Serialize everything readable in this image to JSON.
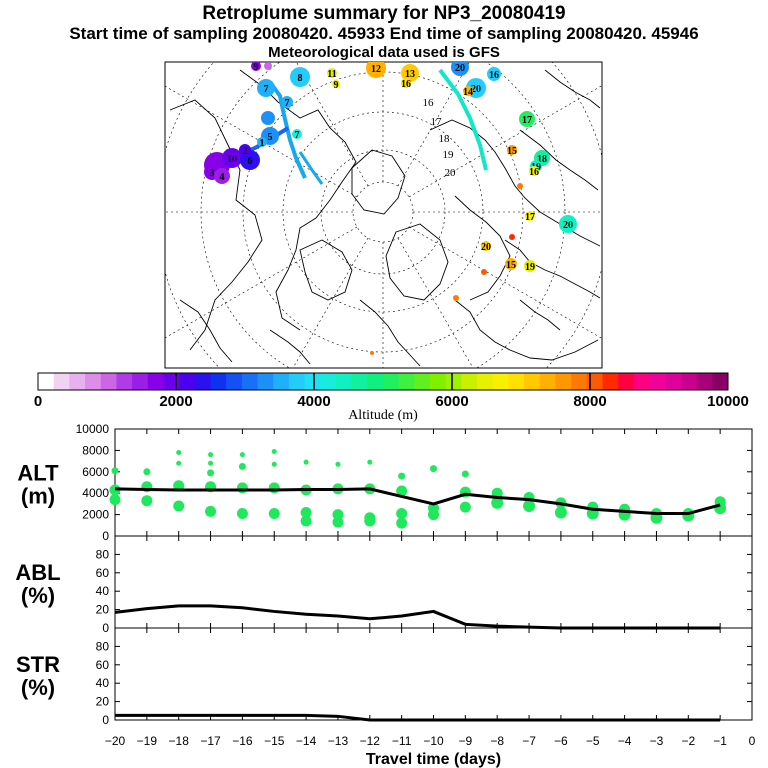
{
  "header": {
    "title": "Retroplume summary for NP3_20080419",
    "sampling_line": "Start time of sampling 20080420. 45933     End time of sampling 20080420. 45946",
    "met_line": "Meteorological data used is GFS"
  },
  "colorbar": {
    "ticks": [
      "0",
      "2000",
      "4000",
      "6000",
      "8000",
      "10000"
    ],
    "label": "Altitude (m)",
    "colors": [
      "#ffffff",
      "#f2d2f2",
      "#e8b0ee",
      "#dc8ee8",
      "#cc66e6",
      "#b03ce6",
      "#9a1ee6",
      "#8800e8",
      "#6a00ea",
      "#4c00ee",
      "#2c10f0",
      "#1030f2",
      "#1450f4",
      "#1870f6",
      "#1c90f8",
      "#20b0fa",
      "#24ccfc",
      "#20e0f4",
      "#18ecdc",
      "#10f0c0",
      "#10f0a0",
      "#10f080",
      "#20f060",
      "#40f040",
      "#60f020",
      "#80f000",
      "#a0f000",
      "#c8f000",
      "#e6f000",
      "#f8f000",
      "#ffe000",
      "#ffc800",
      "#ffb000",
      "#ff9800",
      "#ff7a00",
      "#ff5a00",
      "#ff2a00",
      "#ff0040",
      "#ff0080",
      "#f2009a",
      "#e0009a",
      "#c8008c",
      "#a8007a",
      "#880066"
    ]
  },
  "map": {
    "labels": [
      "12",
      "13",
      "15",
      "16",
      "17",
      "18",
      "19",
      "20",
      "14",
      "11",
      "8",
      "7",
      "6",
      "5",
      "4",
      "3",
      "2",
      "1",
      "9",
      "10"
    ],
    "track_labels": [
      "16",
      "17",
      "18",
      "19",
      "20"
    ]
  },
  "chart_data": [
    {
      "type": "scatter",
      "panel": "ALT",
      "ylabel": "ALT (m)",
      "ylim": [
        0,
        10000
      ],
      "yticks": [
        "0",
        "2000",
        "4000",
        "6000",
        "8000",
        "10000"
      ],
      "x": [
        -20,
        -19,
        -18,
        -17,
        -16,
        -15,
        -14,
        -13,
        -12,
        -11,
        -10,
        -9,
        -8,
        -7,
        -6,
        -5,
        -4,
        -3,
        -2,
        -1
      ],
      "mean_line": [
        4400,
        4350,
        4300,
        4300,
        4300,
        4300,
        4350,
        4350,
        4400,
        3700,
        3000,
        3900,
        3600,
        3400,
        3000,
        2500,
        2300,
        2100,
        2100,
        2900
      ],
      "clusters": [
        {
          "x": -20,
          "y": [
            6100,
            4300,
            3400
          ]
        },
        {
          "x": -19,
          "y": [
            6000,
            4600,
            3300
          ]
        },
        {
          "x": -18,
          "y": [
            7800,
            6800,
            4700,
            2800
          ]
        },
        {
          "x": -17,
          "y": [
            7600,
            6800,
            5900,
            4600,
            2300
          ]
        },
        {
          "x": -16,
          "y": [
            7600,
            6500,
            4500,
            2100
          ]
        },
        {
          "x": -15,
          "y": [
            7900,
            6700,
            4500,
            2100
          ]
        },
        {
          "x": -14,
          "y": [
            6900,
            4300,
            2200,
            1400
          ]
        },
        {
          "x": -13,
          "y": [
            6700,
            4400,
            2000,
            1300
          ]
        },
        {
          "x": -12,
          "y": [
            6900,
            4400,
            1700,
            1400
          ]
        },
        {
          "x": -11,
          "y": [
            5600,
            4200,
            2100,
            1200
          ]
        },
        {
          "x": -10,
          "y": [
            6300,
            2600,
            2000
          ]
        },
        {
          "x": -9,
          "y": [
            5800,
            4100,
            2700
          ]
        },
        {
          "x": -8,
          "y": [
            4000,
            3100
          ]
        },
        {
          "x": -7,
          "y": [
            3600,
            2800
          ]
        },
        {
          "x": -6,
          "y": [
            3100,
            2200
          ]
        },
        {
          "x": -5,
          "y": [
            2700,
            2100
          ]
        },
        {
          "x": -4,
          "y": [
            2500,
            2000
          ]
        },
        {
          "x": -3,
          "y": [
            2100,
            1700
          ]
        },
        {
          "x": -2,
          "y": [
            2100,
            1900
          ]
        },
        {
          "x": -1,
          "y": [
            3200,
            2600
          ]
        }
      ]
    },
    {
      "type": "line",
      "panel": "ABL",
      "ylabel": "ABL (%)",
      "ylim": [
        0,
        100
      ],
      "yticks": [
        "0",
        "20",
        "40",
        "60",
        "80"
      ],
      "x": [
        -20,
        -19,
        -18,
        -17,
        -16,
        -15,
        -14,
        -13,
        -12,
        -11,
        -10,
        -9,
        -8,
        -7,
        -6,
        -5,
        -4,
        -3,
        -2,
        -1
      ],
      "values": [
        17,
        21,
        24,
        24,
        22,
        18,
        15,
        13,
        10,
        13,
        18,
        4,
        2,
        1,
        0,
        0,
        0,
        0,
        0,
        0
      ]
    },
    {
      "type": "line",
      "panel": "STR",
      "ylabel": "STR (%)",
      "ylim": [
        0,
        100
      ],
      "yticks": [
        "0",
        "20",
        "40",
        "60",
        "80"
      ],
      "x": [
        -20,
        -19,
        -18,
        -17,
        -16,
        -15,
        -14,
        -13,
        -12,
        -11,
        -10,
        -9,
        -8,
        -7,
        -6,
        -5,
        -4,
        -3,
        -2,
        -1
      ],
      "values": [
        5,
        5,
        5,
        5,
        5,
        5,
        5,
        4,
        0,
        0,
        0,
        0,
        0,
        0,
        0,
        0,
        0,
        0,
        0,
        0
      ]
    }
  ],
  "xaxis": {
    "ticks": [
      "−20",
      "−19",
      "−18",
      "−17",
      "−16",
      "−15",
      "−14",
      "−13",
      "−12",
      "−11",
      "−10",
      "−9",
      "−8",
      "−7",
      "−6",
      "−5",
      "−4",
      "−3",
      "−2",
      "−1",
      "0"
    ],
    "label": "Travel time (days)"
  },
  "panel_labels": {
    "alt_1": "ALT",
    "alt_2": "(m)",
    "abl_1": "ABL",
    "abl_2": "(%)",
    "str_1": "STR",
    "str_2": "(%)"
  },
  "colors": {
    "green": "#1fe85c",
    "track": "#10e8c8",
    "line": "#000000"
  }
}
